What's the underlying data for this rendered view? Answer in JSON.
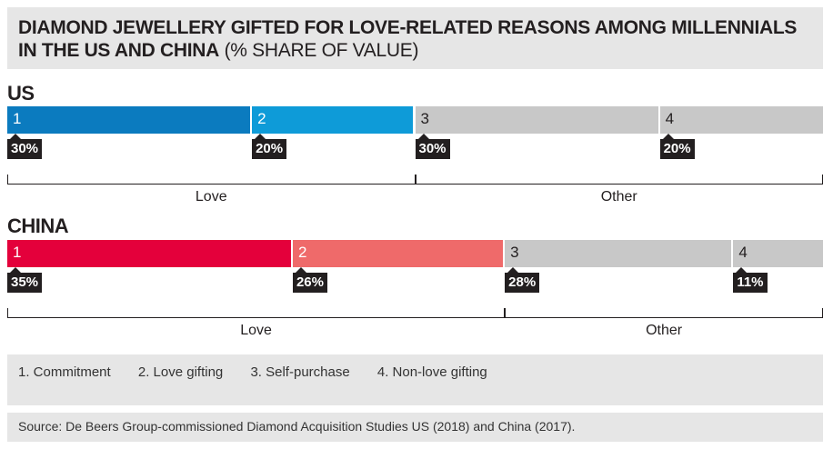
{
  "title": {
    "bold": "DIAMOND JEWELLERY GIFTED FOR LOVE-RELATED REASONS AMONG MILLENNIALS IN THE US AND CHINA",
    "light": "(% SHARE OF VALUE)"
  },
  "chart_data": [
    {
      "type": "bar",
      "name": "US",
      "categories": [
        "1",
        "2",
        "3",
        "4"
      ],
      "values": [
        30,
        20,
        30,
        20
      ],
      "value_labels": [
        "30%",
        "20%",
        "30%",
        "20%"
      ],
      "colors": [
        "#0b7bbf",
        "#0e9bd8",
        "#c8c8c8",
        "#c8c8c8"
      ],
      "groups": [
        {
          "label": "Love",
          "span": [
            0,
            1
          ]
        },
        {
          "label": "Other",
          "span": [
            2,
            3
          ]
        }
      ]
    },
    {
      "type": "bar",
      "name": "CHINA",
      "categories": [
        "1",
        "2",
        "3",
        "4"
      ],
      "values": [
        35,
        26,
        28,
        11
      ],
      "value_labels": [
        "35%",
        "26%",
        "28%",
        "11%"
      ],
      "colors": [
        "#e4003b",
        "#ef6a6a",
        "#c8c8c8",
        "#c8c8c8"
      ],
      "groups": [
        {
          "label": "Love",
          "span": [
            0,
            1
          ]
        },
        {
          "label": "Other",
          "span": [
            2,
            3
          ]
        }
      ]
    }
  ],
  "legend": [
    "1. Commitment",
    "2. Love gifting",
    "3. Self-purchase",
    "4. Non-love gifting"
  ],
  "source": "Source: De Beers Group-commissioned Diamond Acquisition Studies US (2018) and China (2017)."
}
